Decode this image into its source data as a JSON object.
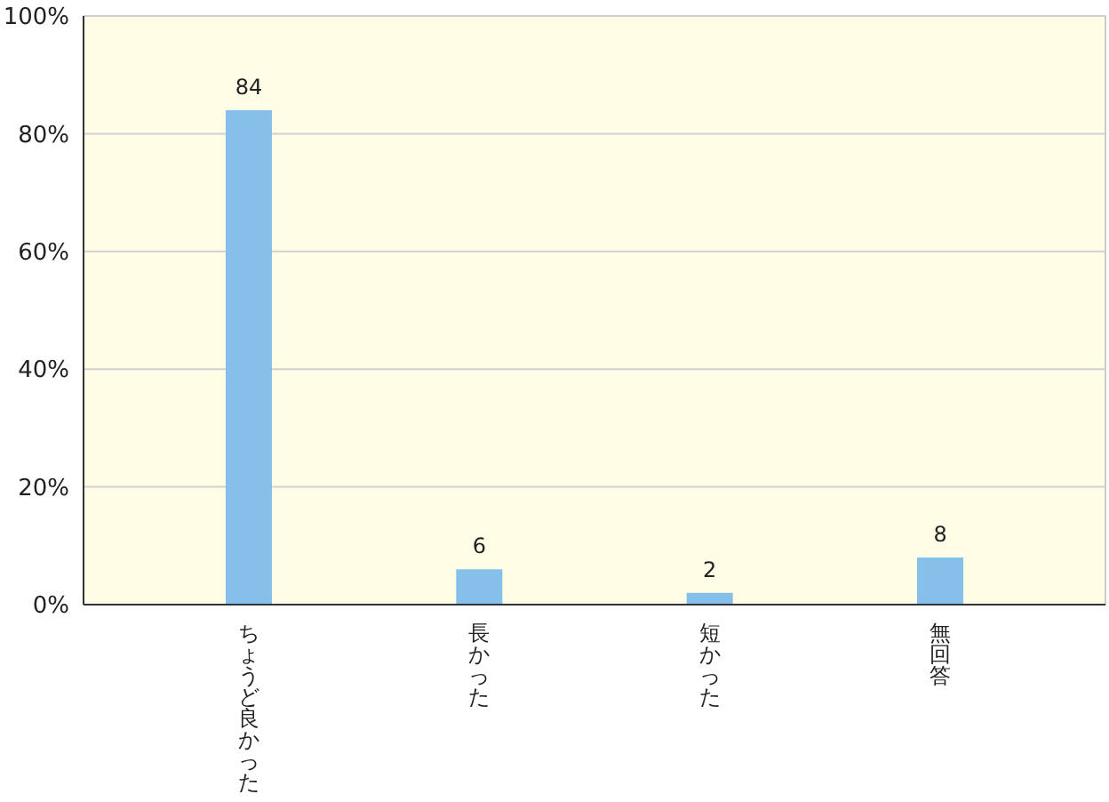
{
  "chart_data": {
    "type": "bar",
    "categories": [
      "ちょうど良かった",
      "長かった",
      "短かった",
      "無回答"
    ],
    "values": [
      84,
      6,
      2,
      8
    ],
    "color": "#85c0ea",
    "data_labels": true,
    "grid": "y",
    "ylim": [
      0,
      100
    ],
    "yticks": [
      {
        "value": 0,
        "label": "0%"
      },
      {
        "value": 20,
        "label": "20%"
      },
      {
        "value": 40,
        "label": "40%"
      },
      {
        "value": 60,
        "label": "60%"
      },
      {
        "value": 80,
        "label": "80%"
      },
      {
        "value": 100,
        "label": "100%"
      }
    ]
  }
}
